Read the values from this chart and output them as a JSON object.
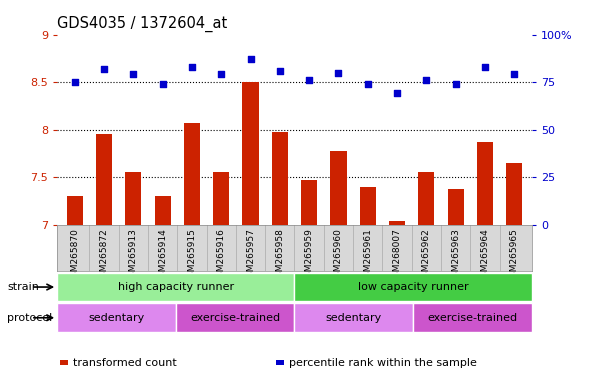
{
  "title": "GDS4035 / 1372604_at",
  "samples": [
    "GSM265870",
    "GSM265872",
    "GSM265913",
    "GSM265914",
    "GSM265915",
    "GSM265916",
    "GSM265957",
    "GSM265958",
    "GSM265959",
    "GSM265960",
    "GSM265961",
    "GSM268007",
    "GSM265962",
    "GSM265963",
    "GSM265964",
    "GSM265965"
  ],
  "transformed_counts": [
    7.3,
    7.95,
    7.55,
    7.3,
    8.07,
    7.55,
    8.5,
    7.97,
    7.47,
    7.78,
    7.4,
    7.04,
    7.55,
    7.38,
    7.87,
    7.65
  ],
  "percentile_ranks": [
    75,
    82,
    79,
    74,
    83,
    79,
    87,
    81,
    76,
    80,
    74,
    69,
    76,
    74,
    83,
    79
  ],
  "bar_color": "#cc2200",
  "dot_color": "#0000cc",
  "ylim_left": [
    7,
    9
  ],
  "ylim_right": [
    0,
    100
  ],
  "yticks_left": [
    7,
    7.5,
    8,
    8.5,
    9
  ],
  "yticks_right": [
    0,
    25,
    50,
    75,
    100
  ],
  "ytick_labels_left": [
    "7",
    "7.5",
    "8",
    "8.5",
    "9"
  ],
  "ytick_labels_right": [
    "0",
    "25",
    "50",
    "75",
    "100%"
  ],
  "strain_groups": [
    {
      "label": "high capacity runner",
      "start": 0,
      "end": 7,
      "color": "#99ee99"
    },
    {
      "label": "low capacity runner",
      "start": 8,
      "end": 15,
      "color": "#44cc44"
    }
  ],
  "protocol_groups": [
    {
      "label": "sedentary",
      "start": 0,
      "end": 3,
      "color": "#dd88ee"
    },
    {
      "label": "exercise-trained",
      "start": 4,
      "end": 7,
      "color": "#cc55cc"
    },
    {
      "label": "sedentary",
      "start": 8,
      "end": 11,
      "color": "#dd88ee"
    },
    {
      "label": "exercise-trained",
      "start": 12,
      "end": 15,
      "color": "#cc55cc"
    }
  ],
  "legend_items": [
    {
      "color": "#cc2200",
      "label": "transformed count"
    },
    {
      "color": "#0000cc",
      "label": "percentile rank within the sample"
    }
  ],
  "strain_label": "strain",
  "protocol_label": "protocol",
  "background_color": "#ffffff",
  "tick_color_left": "#cc2200",
  "tick_color_right": "#0000cc"
}
